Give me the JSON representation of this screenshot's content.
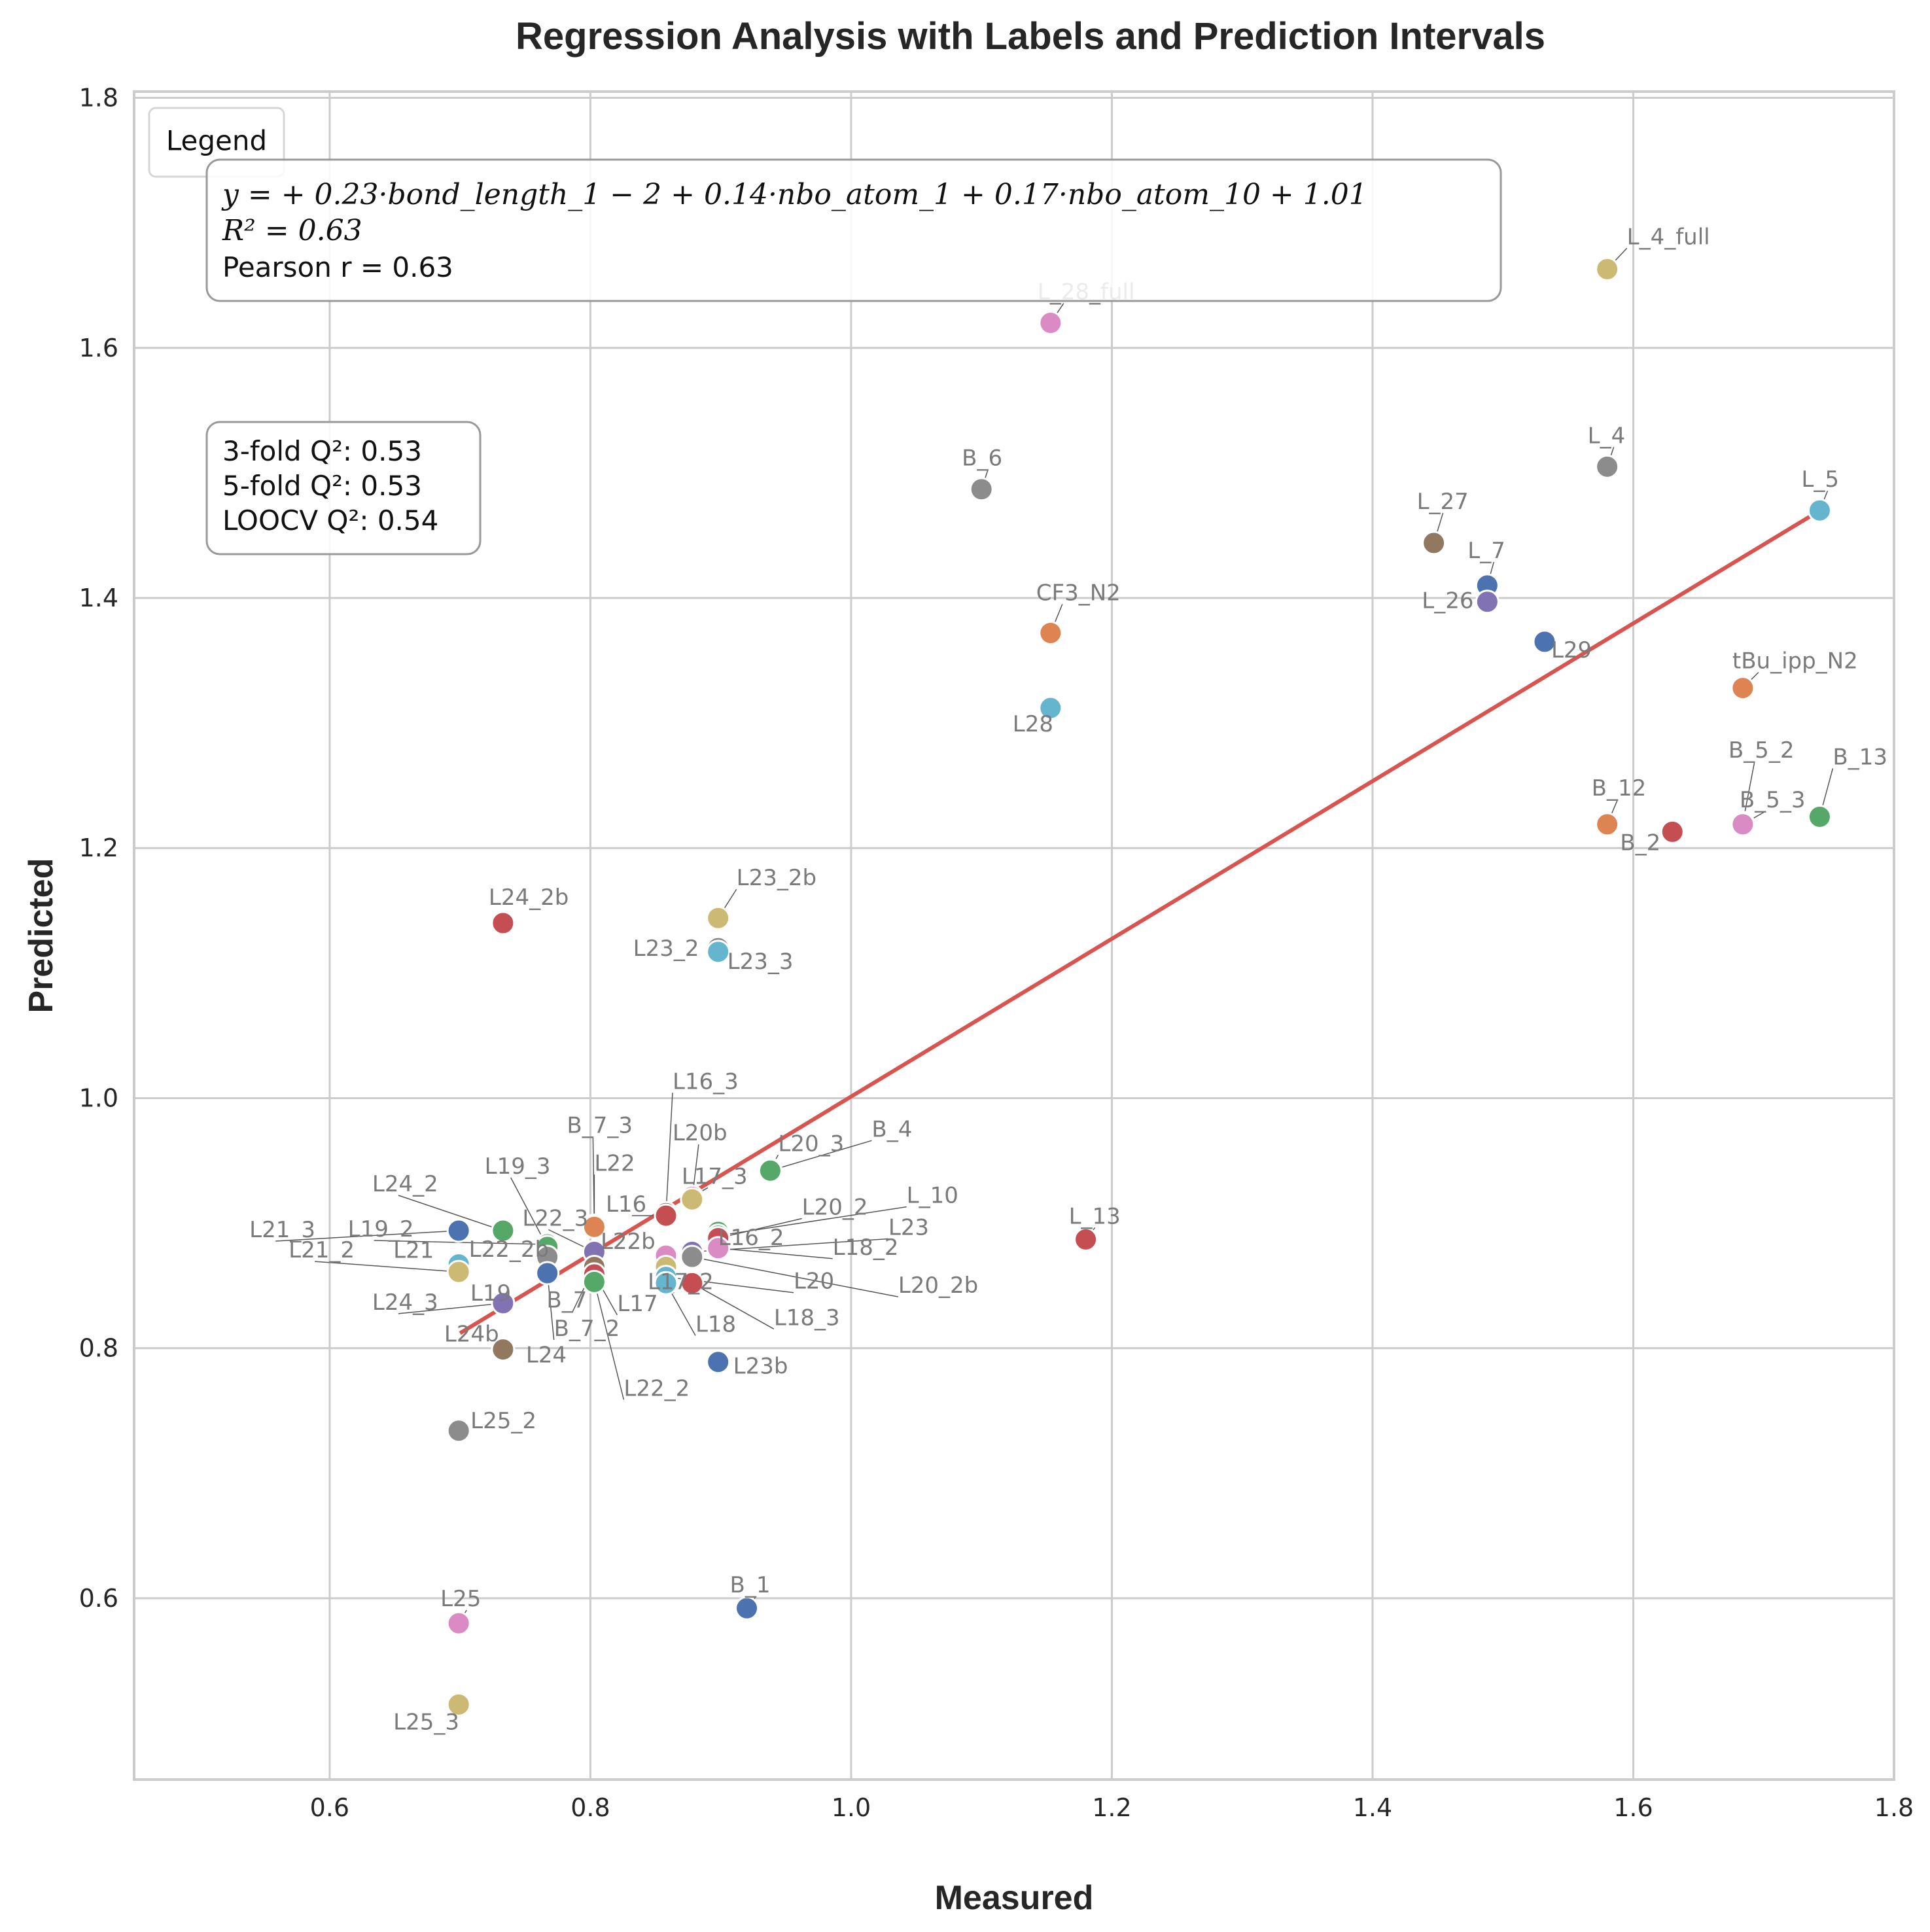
{
  "chart_data": {
    "type": "scatter",
    "title": "Regression Analysis with Labels and Prediction Intervals",
    "xlabel": "Measured",
    "ylabel": "Predicted",
    "xlim": [
      0.45,
      1.8
    ],
    "ylim": [
      0.455,
      1.805
    ],
    "xticks": [
      0.6,
      0.8,
      1.0,
      1.2,
      1.4,
      1.6,
      1.8
    ],
    "yticks": [
      0.6,
      0.8,
      1.0,
      1.2,
      1.4,
      1.6,
      1.8
    ],
    "xtick_labels": [
      "0.6",
      "0.8",
      "1.0",
      "1.2",
      "1.4",
      "1.6",
      "1.8"
    ],
    "ytick_labels": [
      "0.6",
      "0.8",
      "1.0",
      "1.2",
      "1.4",
      "1.6",
      "1.8"
    ],
    "grid": true,
    "legend": {
      "title": "Legend",
      "placement": "top-left"
    },
    "equation_box": {
      "equation": "y = + 0.23·bond_length_1 − 2 + 0.14·nbo_atom_1 + 0.17·nbo_atom_10 + 1.01",
      "r2": "R² = 0.63",
      "pearson": "Pearson r = 0.63"
    },
    "q2_box": {
      "line1": "3-fold Q²: 0.53",
      "line2": "5-fold Q²: 0.53",
      "line3": "LOOCV Q²: 0.54"
    },
    "regression_line": {
      "color": "#d9534f",
      "x": [
        0.7,
        1.74
      ],
      "y": [
        0.812,
        1.468
      ]
    },
    "points": [
      {
        "label": "L_4_full",
        "x": 1.58,
        "y": 1.663,
        "color": "#ccb974"
      },
      {
        "label": "L_28_full",
        "x": 1.153,
        "y": 1.62,
        "color": "#da8bc3"
      },
      {
        "label": "L_4",
        "x": 1.58,
        "y": 1.505,
        "color": "#8c8c8c"
      },
      {
        "label": "B_6",
        "x": 1.1,
        "y": 1.487,
        "color": "#8c8c8c"
      },
      {
        "label": "L_5",
        "x": 1.743,
        "y": 1.47,
        "color": "#64b5cd"
      },
      {
        "label": "L_27",
        "x": 1.447,
        "y": 1.444,
        "color": "#937860"
      },
      {
        "label": "L_7",
        "x": 1.488,
        "y": 1.41,
        "color": "#4c72b0"
      },
      {
        "label": "L_26",
        "x": 1.488,
        "y": 1.397,
        "color": "#8172b3"
      },
      {
        "label": "CF3_N2",
        "x": 1.153,
        "y": 1.372,
        "color": "#dd8452"
      },
      {
        "label": "L29",
        "x": 1.532,
        "y": 1.365,
        "color": "#4c72b0"
      },
      {
        "label": "tBu_ipp_N2",
        "x": 1.684,
        "y": 1.328,
        "color": "#dd8452"
      },
      {
        "label": "L28",
        "x": 1.153,
        "y": 1.312,
        "color": "#64b5cd"
      },
      {
        "label": "B_13",
        "x": 1.743,
        "y": 1.225,
        "color": "#55a868"
      },
      {
        "label": "B_5_2",
        "x": 1.684,
        "y": 1.22,
        "color": "#da8bc3"
      },
      {
        "label": "B_5_3",
        "x": 1.684,
        "y": 1.219,
        "color": "#da8bc3"
      },
      {
        "label": "B_12",
        "x": 1.58,
        "y": 1.219,
        "color": "#dd8452"
      },
      {
        "label": "B_2",
        "x": 1.63,
        "y": 1.213,
        "color": "#c44e52"
      },
      {
        "label": "L23_2b",
        "x": 0.898,
        "y": 1.144,
        "color": "#ccb974"
      },
      {
        "label": "L24_2b",
        "x": 0.733,
        "y": 1.14,
        "color": "#c44e52"
      },
      {
        "label": "L23_2",
        "x": 0.898,
        "y": 1.12,
        "color": "#8c8c8c"
      },
      {
        "label": "L23_3",
        "x": 0.898,
        "y": 1.117,
        "color": "#64b5cd"
      },
      {
        "label": "L20_3",
        "x": 0.938,
        "y": 0.943,
        "color": "#8172b3"
      },
      {
        "label": "B_4",
        "x": 0.938,
        "y": 0.942,
        "color": "#55a868"
      },
      {
        "label": "L17_3",
        "x": 0.878,
        "y": 0.921,
        "color": "#da8bc3"
      },
      {
        "label": "L20b",
        "x": 0.878,
        "y": 0.919,
        "color": "#ccb974"
      },
      {
        "label": "L16_3",
        "x": 0.858,
        "y": 0.908,
        "color": "#c44e52"
      },
      {
        "label": "L16",
        "x": 0.858,
        "y": 0.906,
        "color": "#c44e52"
      },
      {
        "label": "B_7_3",
        "x": 0.803,
        "y": 0.898,
        "color": "#dd8452"
      },
      {
        "label": "L22",
        "x": 0.803,
        "y": 0.897,
        "color": "#dd8452"
      },
      {
        "label": "L21_3",
        "x": 0.699,
        "y": 0.894,
        "color": "#4c72b0"
      },
      {
        "label": "L24_2",
        "x": 0.733,
        "y": 0.894,
        "color": "#55a868"
      },
      {
        "label": "L16_2",
        "x": 0.898,
        "y": 0.893,
        "color": "#55a868"
      },
      {
        "label": "L_10",
        "x": 0.898,
        "y": 0.89,
        "color": "#55a868"
      },
      {
        "label": "L20_2",
        "x": 0.898,
        "y": 0.888,
        "color": "#c44e52"
      },
      {
        "label": "L19_2",
        "x": 0.767,
        "y": 0.883,
        "color": "#55a868"
      },
      {
        "label": "L19_3",
        "x": 0.767,
        "y": 0.881,
        "color": "#55a868"
      },
      {
        "label": "L18_2",
        "x": 0.898,
        "y": 0.88,
        "color": "#da8bc3"
      },
      {
        "label": "L23",
        "x": 0.878,
        "y": 0.877,
        "color": "#8172b3"
      },
      {
        "label": "L22_3",
        "x": 0.803,
        "y": 0.877,
        "color": "#8172b3"
      },
      {
        "label": "L22b",
        "x": 0.858,
        "y": 0.874,
        "color": "#da8bc3"
      },
      {
        "label": "L20_2b",
        "x": 0.878,
        "y": 0.873,
        "color": "#8c8c8c"
      },
      {
        "label": "L22_2b",
        "x": 0.767,
        "y": 0.873,
        "color": "#8c8c8c"
      },
      {
        "label": "L21",
        "x": 0.699,
        "y": 0.867,
        "color": "#64b5cd"
      },
      {
        "label": "L21_2",
        "x": 0.699,
        "y": 0.861,
        "color": "#ccb974"
      },
      {
        "label": "L17_2",
        "x": 0.858,
        "y": 0.865,
        "color": "#ccb974"
      },
      {
        "label": "B_7",
        "x": 0.803,
        "y": 0.865,
        "color": "#937860"
      },
      {
        "label": "L17",
        "x": 0.803,
        "y": 0.859,
        "color": "#c44e52"
      },
      {
        "label": "B_7_2",
        "x": 0.767,
        "y": 0.86,
        "color": "#4c72b0"
      },
      {
        "label": "L22_2",
        "x": 0.803,
        "y": 0.853,
        "color": "#55a868"
      },
      {
        "label": "L20",
        "x": 0.858,
        "y": 0.857,
        "color": "#64b5cd"
      },
      {
        "label": "L18",
        "x": 0.858,
        "y": 0.852,
        "color": "#64b5cd"
      },
      {
        "label": "L18_3",
        "x": 0.878,
        "y": 0.852,
        "color": "#c44e52"
      },
      {
        "label": "L24_3",
        "x": 0.733,
        "y": 0.836,
        "color": "#8172b3"
      },
      {
        "label": "L19",
        "x": 0.733,
        "y": 0.836,
        "color": "#8172b3"
      },
      {
        "label": "L_13",
        "x": 1.18,
        "y": 0.887,
        "color": "#c44e52"
      },
      {
        "label": "L24b",
        "x": 0.733,
        "y": 0.8,
        "color": "#8c8c8c"
      },
      {
        "label": "L24",
        "x": 0.733,
        "y": 0.799,
        "color": "#937860"
      },
      {
        "label": "L23b",
        "x": 0.898,
        "y": 0.789,
        "color": "#4c72b0"
      },
      {
        "label": "L25_2",
        "x": 0.699,
        "y": 0.734,
        "color": "#8c8c8c"
      },
      {
        "label": "B_1",
        "x": 0.92,
        "y": 0.592,
        "color": "#4c72b0"
      },
      {
        "label": "L25",
        "x": 0.699,
        "y": 0.58,
        "color": "#da8bc3"
      },
      {
        "label": "L25_3",
        "x": 0.699,
        "y": 0.515,
        "color": "#ccb974"
      }
    ]
  }
}
